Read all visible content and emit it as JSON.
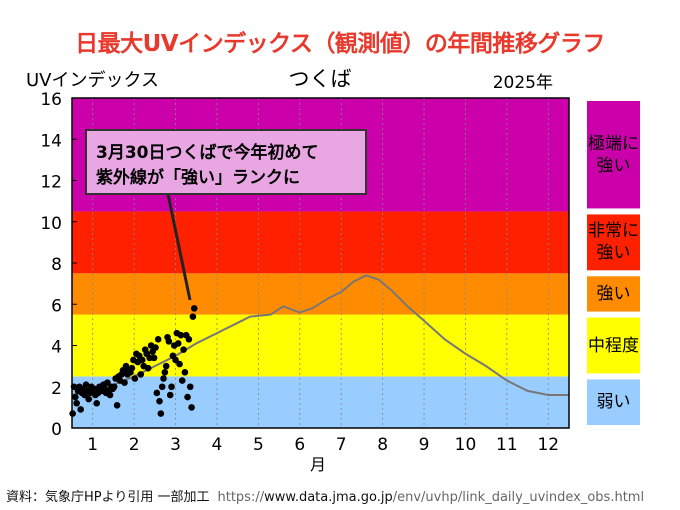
{
  "page": {
    "title": "日最大UVインデックス（観測値）の年間推移グラフ",
    "source_label": "資料：気象庁HPより引用 一部加工",
    "url_prefix": "https://",
    "url_domain": "www.data.jma.go.jp",
    "url_path": "/env/uvhp/link_daily_uvindex_obs.html"
  },
  "chart_data": {
    "type": "scatter",
    "title": "つくば",
    "ylabel": "UVインデックス",
    "year_label": "2025年",
    "xlabel": "月",
    "xlim": [
      0.5,
      12.5
    ],
    "ylim": [
      0,
      16
    ],
    "xticks": [
      "1",
      "2",
      "3",
      "4",
      "5",
      "6",
      "7",
      "8",
      "9",
      "10",
      "11",
      "12"
    ],
    "yticks": [
      0,
      2,
      4,
      6,
      8,
      10,
      12,
      14,
      16
    ],
    "bands": [
      {
        "label": "弱い",
        "from": 0,
        "to": 2.5,
        "color": "#99ccff"
      },
      {
        "label": "中程度",
        "from": 2.5,
        "to": 5.5,
        "color": "#ffff00"
      },
      {
        "label": "強い",
        "from": 5.5,
        "to": 7.5,
        "color": "#ff8c00"
      },
      {
        "label": "非常に強い",
        "from": 7.5,
        "to": 10.5,
        "color": "#ff2000"
      },
      {
        "label": "極端に強い",
        "from": 10.5,
        "to": 16,
        "color": "#cc00aa"
      }
    ],
    "normal_line": {
      "x": [
        0.5,
        1,
        1.5,
        2,
        2.5,
        3,
        3.5,
        4,
        4.5,
        4.8,
        5.3,
        5.6,
        6,
        6.3,
        6.7,
        7,
        7.3,
        7.6,
        7.9,
        8.2,
        8.6,
        9,
        9.5,
        10,
        10.5,
        11,
        11.5,
        12,
        12.5
      ],
      "y": [
        1.6,
        1.8,
        2.1,
        2.5,
        3.0,
        3.5,
        4.1,
        4.6,
        5.1,
        5.4,
        5.5,
        5.9,
        5.6,
        5.8,
        6.3,
        6.6,
        7.1,
        7.4,
        7.2,
        6.7,
        5.9,
        5.2,
        4.3,
        3.6,
        3.0,
        2.3,
        1.8,
        1.6,
        1.6
      ]
    },
    "daily_2025": {
      "start": "1/1",
      "values": [
        0.7,
        2.0,
        1.5,
        1.2,
        1.8,
        2.0,
        0.9,
        1.7,
        1.9,
        1.6,
        2.1,
        1.8,
        1.4,
        1.7,
        2.0,
        1.8,
        1.9,
        1.6,
        1.2,
        1.7,
        2.0,
        1.9,
        1.8,
        2.1,
        1.9,
        1.7,
        2.2,
        1.8,
        1.6,
        2.0,
        1.9,
        2.0,
        2.4,
        1.1,
        2.5,
        2.3,
        2.6,
        2.8,
        2.2,
        3.0,
        2.6,
        2.8,
        2.7,
        2.9,
        3.3,
        2.4,
        3.6,
        3.2,
        3.5,
        2.6,
        3.3,
        3.0,
        3.8,
        3.6,
        2.9,
        3.4,
        4.0,
        3.7,
        3.4,
        3.9,
        1.7,
        4.3,
        1.3,
        0.7,
        2.0,
        2.4,
        2.7,
        3.0,
        4.4,
        4.2,
        1.6,
        2.0,
        3.5,
        4.0,
        3.3,
        4.6,
        4.1,
        3.1,
        4.5,
        2.3,
        3.8,
        2.7,
        4.5,
        1.5,
        4.3,
        2.0,
        1.0,
        5.4,
        5.8
      ]
    },
    "annotation": "3月30日つくばで今年初めて\n紫外線が「強い」ランクに",
    "annotation_lines": [
      "3月30日つくばで今年初めて",
      "紫外線が「強い」ランクに"
    ]
  }
}
